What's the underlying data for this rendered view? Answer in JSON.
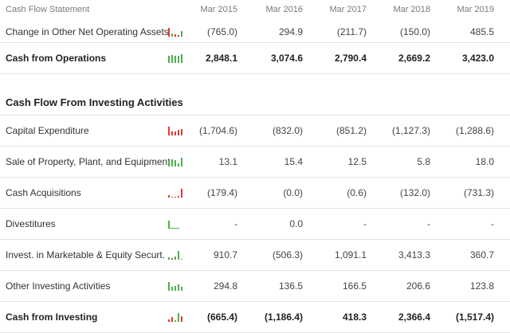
{
  "header": {
    "label": "Cash Flow Statement",
    "years": [
      "Mar 2015",
      "Mar 2016",
      "Mar 2017",
      "Mar 2018",
      "Mar 2019"
    ]
  },
  "colors": {
    "spark_green": "#4caf50",
    "spark_red": "#e53935"
  },
  "rows_top": [
    {
      "label": "Change in Other Net Operating Assets",
      "values": [
        "(765.0)",
        "294.9",
        "(211.7)",
        "(150.0)",
        "485.5"
      ],
      "bold": false,
      "spark": [
        -765.0,
        294.9,
        -211.7,
        -150.0,
        485.5
      ]
    },
    {
      "label": "Cash from Operations",
      "values": [
        "2,848.1",
        "3,074.6",
        "2,790.4",
        "2,669.2",
        "3,423.0"
      ],
      "bold": true,
      "spark": [
        2848.1,
        3074.6,
        2790.4,
        2669.2,
        3423.0
      ]
    }
  ],
  "section_title": "Cash Flow From Investing Activities",
  "rows_investing": [
    {
      "label": "Capital Expenditure",
      "values": [
        "(1,704.6)",
        "(832.0)",
        "(851.2)",
        "(1,127.3)",
        "(1,288.6)"
      ],
      "bold": false,
      "spark": [
        -1704.6,
        -832.0,
        -851.2,
        -1127.3,
        -1288.6
      ]
    },
    {
      "label": "Sale of Property, Plant, and Equipment",
      "values": [
        "13.1",
        "15.4",
        "12.5",
        "5.8",
        "18.0"
      ],
      "bold": false,
      "spark": [
        13.1,
        15.4,
        12.5,
        5.8,
        18.0
      ]
    },
    {
      "label": "Cash Acquisitions",
      "values": [
        "(179.4)",
        "(0.0)",
        "(0.6)",
        "(132.0)",
        "(731.3)"
      ],
      "bold": false,
      "spark": [
        -179.4,
        0.0,
        -0.6,
        -132.0,
        -731.3
      ]
    },
    {
      "label": "Divestitures",
      "values": [
        "-",
        "0.0",
        "-",
        "-",
        "-"
      ],
      "bold": false,
      "spark": [
        0,
        0,
        0,
        0,
        0
      ]
    },
    {
      "label": "Invest. in Marketable & Equity Securt.",
      "values": [
        "910.7",
        "(506.3)",
        "1,091.1",
        "3,413.3",
        "360.7"
      ],
      "bold": false,
      "spark": [
        910.7,
        -506.3,
        1091.1,
        3413.3,
        360.7
      ]
    },
    {
      "label": "Other Investing Activities",
      "values": [
        "294.8",
        "136.5",
        "166.5",
        "206.6",
        "123.8"
      ],
      "bold": false,
      "spark": [
        294.8,
        136.5,
        166.5,
        206.6,
        123.8
      ]
    },
    {
      "label": "Cash from Investing",
      "values": [
        "(665.4)",
        "(1,186.4)",
        "418.3",
        "2,366.4",
        "(1,517.4)"
      ],
      "bold": true,
      "spark": [
        -665.4,
        -1186.4,
        418.3,
        2366.4,
        -1517.4
      ]
    }
  ]
}
